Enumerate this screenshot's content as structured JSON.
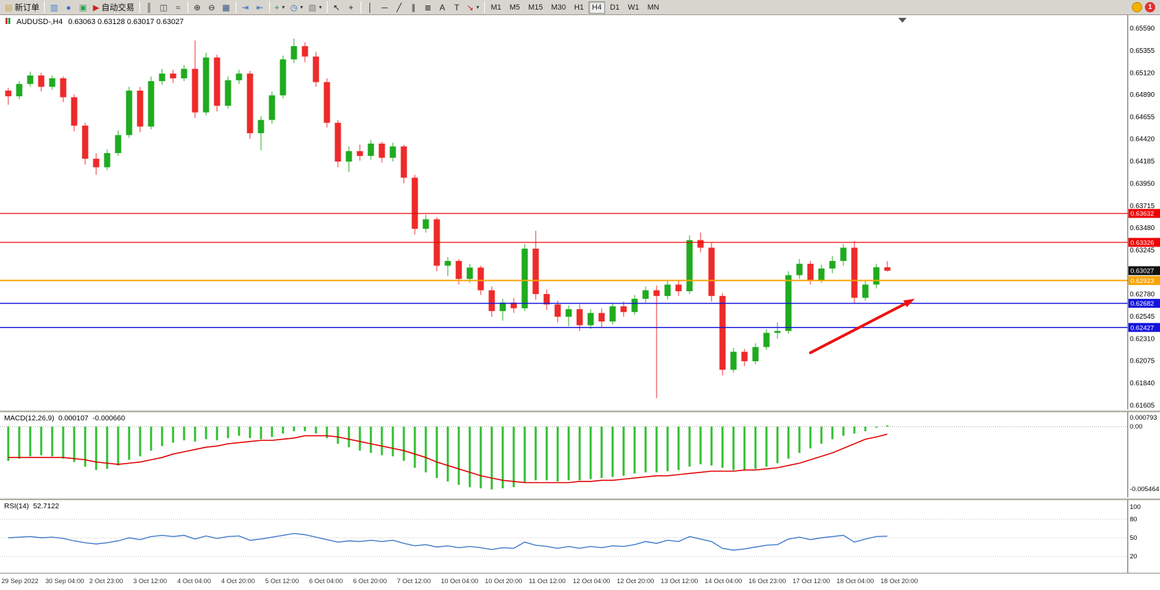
{
  "toolbar": {
    "buttons": [
      {
        "name": "new-order",
        "label": "新订单",
        "icon": "new-order-icon",
        "glyph": "▤",
        "color": "#caa43c"
      },
      {
        "name": "charts",
        "icon": "charts-icon",
        "glyph": "▥",
        "color": "#4a7ec9",
        "group_start": true
      },
      {
        "name": "profiles",
        "icon": "profiles-icon",
        "glyph": "●",
        "color": "#3a6fc0"
      },
      {
        "name": "market-watch",
        "icon": "market-watch-icon",
        "glyph": "▣",
        "color": "#2e9e4f"
      },
      {
        "name": "autotrading",
        "label": "自动交易",
        "icon": "autotrading-icon",
        "glyph": "▶",
        "color": "#cc2222"
      },
      {
        "name": "bars-mode",
        "icon": "bars-chart-icon",
        "glyph": "║",
        "color": "#444444",
        "group_start": true
      },
      {
        "name": "candles-mode",
        "icon": "candles-chart-icon",
        "glyph": "◫",
        "color": "#444444"
      },
      {
        "name": "line-mode",
        "icon": "line-chart-icon",
        "glyph": "≈",
        "color": "#444444"
      },
      {
        "name": "zoom-in",
        "icon": "zoom-in-icon",
        "glyph": "⊕",
        "color": "#333333",
        "group_start": true
      },
      {
        "name": "zoom-out",
        "icon": "zoom-out-icon",
        "glyph": "⊖",
        "color": "#333333"
      },
      {
        "name": "tile-windows",
        "icon": "tile-windows-icon",
        "glyph": "▦",
        "color": "#335588"
      },
      {
        "name": "auto-scroll",
        "icon": "auto-scroll-icon",
        "glyph": "⇥",
        "color": "#2f66c4",
        "group_start": true
      },
      {
        "name": "chart-shift",
        "icon": "chart-shift-icon",
        "glyph": "⇤",
        "color": "#2f66c4"
      },
      {
        "name": "new-chart",
        "icon": "new-chart-icon",
        "glyph": "+",
        "color": "#1d8f3a",
        "dropdown": true,
        "group_start": true
      },
      {
        "name": "periods",
        "icon": "clock-icon",
        "glyph": "◷",
        "color": "#3a6fc0",
        "dropdown": true
      },
      {
        "name": "templates",
        "icon": "template-chart-icon",
        "glyph": "▧",
        "color": "#777777",
        "dropdown": true
      },
      {
        "name": "cursor",
        "icon": "cursor-icon",
        "glyph": "↖",
        "color": "#222222",
        "group_start": true
      },
      {
        "name": "crosshair",
        "icon": "crosshair-icon",
        "glyph": "+",
        "color": "#222222"
      },
      {
        "name": "vertical-line",
        "icon": "vertical-line-icon",
        "glyph": "│",
        "color": "#222222",
        "group_start": true
      },
      {
        "name": "horizontal-line",
        "icon": "horizontal-line-icon",
        "glyph": "─",
        "color": "#222222"
      },
      {
        "name": "trendline",
        "icon": "trendline-icon",
        "glyph": "╱",
        "color": "#222222"
      },
      {
        "name": "channel",
        "icon": "channel-icon",
        "glyph": "∥",
        "color": "#222222"
      },
      {
        "name": "fibonacci",
        "icon": "fibonacci-icon",
        "glyph": "≣",
        "color": "#222222"
      },
      {
        "name": "text",
        "icon": "text-icon",
        "glyph": "A",
        "color": "#222222"
      },
      {
        "name": "text-label",
        "icon": "text-label-icon",
        "glyph": "T",
        "color": "#222222"
      },
      {
        "name": "arrows-tool",
        "icon": "arrows-tool-icon",
        "glyph": "↘",
        "color": "#bb2222",
        "dropdown": true
      }
    ],
    "timeframes": [
      "M1",
      "M5",
      "M15",
      "M30",
      "H1",
      "H4",
      "D1",
      "W1",
      "MN"
    ],
    "active_timeframe": "H4",
    "notification_count": "1"
  },
  "chart_data": [
    {
      "type": "candlestick",
      "symbol": "AUDUSD-",
      "period": "H4",
      "title": "AUDUSD-,H4",
      "ohlc_text": "0.63063 0.63128 0.63017 0.63027",
      "up_color": "#1fab1f",
      "down_color": "#ee2a2a",
      "price_axis": {
        "min": 0.61605,
        "max": 0.6559,
        "labels": [
          "0.65590",
          "0.65355",
          "0.65120",
          "0.64890",
          "0.64655",
          "0.64420",
          "0.64185",
          "0.63950",
          "0.63715",
          "0.63480",
          "0.63245",
          "0.62780",
          "0.62545",
          "0.62310",
          "0.62075",
          "0.61840",
          "0.61605"
        ]
      },
      "candles": [
        [
          0.6493,
          0.6496,
          0.6478,
          0.6487
        ],
        [
          0.6487,
          0.6503,
          0.6484,
          0.65
        ],
        [
          0.65,
          0.6513,
          0.6497,
          0.6509
        ],
        [
          0.6509,
          0.6512,
          0.6492,
          0.6497
        ],
        [
          0.6497,
          0.6509,
          0.6494,
          0.6506
        ],
        [
          0.6506,
          0.6508,
          0.6481,
          0.6486
        ],
        [
          0.6486,
          0.6489,
          0.645,
          0.6456
        ],
        [
          0.6456,
          0.6459,
          0.6415,
          0.6421
        ],
        [
          0.6421,
          0.6427,
          0.6404,
          0.6412
        ],
        [
          0.6412,
          0.6431,
          0.6409,
          0.6427
        ],
        [
          0.6427,
          0.6451,
          0.6424,
          0.6446
        ],
        [
          0.6446,
          0.6497,
          0.6443,
          0.6493
        ],
        [
          0.6493,
          0.6497,
          0.6449,
          0.6455
        ],
        [
          0.6455,
          0.6508,
          0.6452,
          0.6503
        ],
        [
          0.6503,
          0.6516,
          0.6499,
          0.6511
        ],
        [
          0.6511,
          0.6515,
          0.6501,
          0.6506
        ],
        [
          0.6506,
          0.652,
          0.6503,
          0.6516
        ],
        [
          0.6516,
          0.6546,
          0.6464,
          0.647
        ],
        [
          0.647,
          0.6533,
          0.6467,
          0.6528
        ],
        [
          0.6528,
          0.6531,
          0.6471,
          0.6477
        ],
        [
          0.6477,
          0.6508,
          0.6474,
          0.6504
        ],
        [
          0.6504,
          0.6515,
          0.65,
          0.6511
        ],
        [
          0.6511,
          0.6514,
          0.6442,
          0.6448
        ],
        [
          0.6448,
          0.6466,
          0.643,
          0.6462
        ],
        [
          0.6462,
          0.6492,
          0.6458,
          0.6488
        ],
        [
          0.6488,
          0.653,
          0.6485,
          0.6526
        ],
        [
          0.6526,
          0.6548,
          0.6522,
          0.654
        ],
        [
          0.654,
          0.6544,
          0.6523,
          0.6529
        ],
        [
          0.6529,
          0.6534,
          0.6497,
          0.6502
        ],
        [
          0.6502,
          0.6506,
          0.6454,
          0.6459
        ],
        [
          0.6459,
          0.6462,
          0.6412,
          0.6418
        ],
        [
          0.6418,
          0.6434,
          0.6407,
          0.6429
        ],
        [
          0.6429,
          0.6436,
          0.6419,
          0.6424
        ],
        [
          0.6424,
          0.6441,
          0.642,
          0.6437
        ],
        [
          0.6437,
          0.6439,
          0.6417,
          0.6422
        ],
        [
          0.6422,
          0.6438,
          0.6418,
          0.6434
        ],
        [
          0.6434,
          0.6436,
          0.6395,
          0.6401
        ],
        [
          0.6401,
          0.6404,
          0.6341,
          0.6347
        ],
        [
          0.6347,
          0.6362,
          0.6343,
          0.6357
        ],
        [
          0.6357,
          0.6359,
          0.6302,
          0.6308
        ],
        [
          0.6308,
          0.6317,
          0.6297,
          0.6313
        ],
        [
          0.6313,
          0.6315,
          0.6288,
          0.6294
        ],
        [
          0.6294,
          0.631,
          0.629,
          0.6306
        ],
        [
          0.6306,
          0.6308,
          0.6277,
          0.6282
        ],
        [
          0.6282,
          0.6286,
          0.6254,
          0.626
        ],
        [
          0.626,
          0.6273,
          0.625,
          0.6269
        ],
        [
          0.6269,
          0.6274,
          0.6258,
          0.6263
        ],
        [
          0.6263,
          0.6331,
          0.626,
          0.6326
        ],
        [
          0.6326,
          0.6345,
          0.6272,
          0.6278
        ],
        [
          0.6278,
          0.6283,
          0.6261,
          0.6267
        ],
        [
          0.6267,
          0.6271,
          0.6248,
          0.6254
        ],
        [
          0.6254,
          0.6266,
          0.6244,
          0.6262
        ],
        [
          0.6262,
          0.6267,
          0.6239,
          0.6245
        ],
        [
          0.6245,
          0.6262,
          0.6241,
          0.6258
        ],
        [
          0.6258,
          0.6263,
          0.6243,
          0.6249
        ],
        [
          0.6249,
          0.6269,
          0.6246,
          0.6265
        ],
        [
          0.6265,
          0.627,
          0.6254,
          0.6259
        ],
        [
          0.6259,
          0.6277,
          0.6256,
          0.6273
        ],
        [
          0.6273,
          0.6286,
          0.6269,
          0.6282
        ],
        [
          0.6282,
          0.6287,
          0.6168,
          0.6276
        ],
        [
          0.6276,
          0.6292,
          0.6272,
          0.6288
        ],
        [
          0.6288,
          0.6293,
          0.6276,
          0.6281
        ],
        [
          0.6281,
          0.634,
          0.6278,
          0.6335
        ],
        [
          0.6335,
          0.6343,
          0.6322,
          0.6327
        ],
        [
          0.6327,
          0.6332,
          0.627,
          0.6276
        ],
        [
          0.6276,
          0.6279,
          0.6192,
          0.6198
        ],
        [
          0.6198,
          0.6221,
          0.6195,
          0.6217
        ],
        [
          0.6217,
          0.622,
          0.6202,
          0.6207
        ],
        [
          0.6207,
          0.6226,
          0.6204,
          0.6222
        ],
        [
          0.6222,
          0.6241,
          0.6219,
          0.6237
        ],
        [
          0.6237,
          0.6248,
          0.6231,
          0.6239
        ],
        [
          0.6239,
          0.6302,
          0.6236,
          0.6298
        ],
        [
          0.6298,
          0.6315,
          0.6294,
          0.631
        ],
        [
          0.631,
          0.6313,
          0.6288,
          0.6293
        ],
        [
          0.6293,
          0.6309,
          0.629,
          0.6305
        ],
        [
          0.6305,
          0.6318,
          0.63,
          0.6313
        ],
        [
          0.6313,
          0.6331,
          0.6308,
          0.6327
        ],
        [
          0.6327,
          0.6334,
          0.6268,
          0.6274
        ],
        [
          0.6274,
          0.6292,
          0.6271,
          0.6288
        ],
        [
          0.6288,
          0.631,
          0.6284,
          0.63063
        ],
        [
          0.63063,
          0.63128,
          0.63017,
          0.63027
        ]
      ],
      "hlines": [
        {
          "price": 0.63632,
          "label": "0.63632",
          "color": "#ee0000",
          "width": 1.3
        },
        {
          "price": 0.63326,
          "label": "0.63326",
          "color": "#ee0000",
          "width": 1.3
        },
        {
          "price": 0.62923,
          "label": "0.62923",
          "color": "#f7a300",
          "width": 2
        },
        {
          "price": 0.62682,
          "label": "0.62682",
          "color": "#1414dd",
          "width": 1.6
        },
        {
          "price": 0.62427,
          "label": "0.62427",
          "color": "#1414dd",
          "width": 1.6
        }
      ],
      "current_price": {
        "value": 0.63027,
        "label": "0.63027",
        "color": "#111111"
      },
      "arrow": {
        "from_index": 73,
        "from_price": 0.6216,
        "to_index": 82.5,
        "to_price": 0.6273,
        "color": "#ee1111"
      },
      "time_labels": [
        "29 Sep 2022",
        "30 Sep 04:00",
        "2 Oct 23:00",
        "3 Oct 12:00",
        "4 Oct 04:00",
        "4 Oct 20:00",
        "5 Oct 12:00",
        "6 Oct 04:00",
        "6 Oct 20:00",
        "7 Oct 12:00",
        "10 Oct 04:00",
        "10 Oct 20:00",
        "11 Oct 12:00",
        "12 Oct 04:00",
        "12 Oct 20:00",
        "13 Oct 12:00",
        "14 Oct 04:00",
        "16 Oct 23:00",
        "17 Oct 12:00",
        "18 Oct 04:00",
        "18 Oct 20:00"
      ]
    },
    {
      "type": "bar",
      "name": "MACD(12,26,9)",
      "value_main": "0.000107",
      "value_signal": "-0.000660",
      "max": 0.000793,
      "min": -0.005464,
      "axis_labels": [
        "0.000793",
        "0.00",
        "-0.005464"
      ],
      "histogram_color": "#2fbf2f",
      "signal_color": "#e00000",
      "histogram": [
        -0.003,
        -0.0028,
        -0.0026,
        -0.0025,
        -0.0026,
        -0.0028,
        -0.0031,
        -0.0035,
        -0.0038,
        -0.0037,
        -0.0034,
        -0.0029,
        -0.0026,
        -0.0021,
        -0.0017,
        -0.0014,
        -0.0012,
        -0.0013,
        -0.0011,
        -0.0012,
        -0.001,
        -0.0008,
        -0.001,
        -0.0011,
        -0.0009,
        -0.0006,
        -0.0004,
        -0.0004,
        -0.0006,
        -0.001,
        -0.0015,
        -0.0018,
        -0.0021,
        -0.0023,
        -0.0025,
        -0.0026,
        -0.003,
        -0.0036,
        -0.004,
        -0.0045,
        -0.0048,
        -0.0051,
        -0.0053,
        -0.0054,
        -0.0055,
        -0.0054,
        -0.0053,
        -0.0049,
        -0.0047,
        -0.0047,
        -0.0048,
        -0.0047,
        -0.0047,
        -0.0046,
        -0.0045,
        -0.0044,
        -0.0043,
        -0.0041,
        -0.004,
        -0.004,
        -0.0039,
        -0.0038,
        -0.0035,
        -0.0033,
        -0.0034,
        -0.0036,
        -0.0038,
        -0.0038,
        -0.0037,
        -0.0035,
        -0.0032,
        -0.0028,
        -0.0023,
        -0.0019,
        -0.0015,
        -0.0011,
        -0.0008,
        -0.0006,
        -0.0004,
        -0.0001,
        0.000107
      ],
      "signal": [
        -0.0027,
        -0.0027,
        -0.0027,
        -0.0027,
        -0.0027,
        -0.0027,
        -0.0028,
        -0.0029,
        -0.0031,
        -0.0032,
        -0.0033,
        -0.0032,
        -0.0031,
        -0.0029,
        -0.0027,
        -0.0024,
        -0.0022,
        -0.002,
        -0.0018,
        -0.0017,
        -0.0015,
        -0.0014,
        -0.0013,
        -0.0012,
        -0.0012,
        -0.0011,
        -0.001,
        -0.0008,
        -0.0008,
        -0.0008,
        -0.0009,
        -0.0011,
        -0.0013,
        -0.0015,
        -0.0017,
        -0.0019,
        -0.0021,
        -0.0024,
        -0.0027,
        -0.0031,
        -0.0034,
        -0.0037,
        -0.004,
        -0.0043,
        -0.0045,
        -0.0047,
        -0.0048,
        -0.0049,
        -0.0049,
        -0.0049,
        -0.0049,
        -0.0049,
        -0.0048,
        -0.0048,
        -0.0047,
        -0.0047,
        -0.0046,
        -0.0045,
        -0.0044,
        -0.0043,
        -0.0043,
        -0.0042,
        -0.0041,
        -0.004,
        -0.0039,
        -0.0039,
        -0.0039,
        -0.0038,
        -0.0038,
        -0.0037,
        -0.0036,
        -0.0034,
        -0.0032,
        -0.0029,
        -0.0026,
        -0.0023,
        -0.0019,
        -0.0015,
        -0.0011,
        -0.0009,
        -0.00066
      ]
    },
    {
      "type": "line",
      "name": "RSI(14)",
      "value": "52.7122",
      "max": 100,
      "min": 0,
      "levels": [
        80,
        50,
        20
      ],
      "axis_labels": [
        "100",
        "80",
        "50",
        "20"
      ],
      "color": "#3b78c9",
      "values": [
        50,
        51,
        52,
        50,
        51,
        49,
        45,
        42,
        40,
        42,
        45,
        50,
        47,
        52,
        54,
        52,
        54,
        48,
        53,
        49,
        52,
        53,
        46,
        48,
        51,
        54,
        57,
        55,
        51,
        47,
        43,
        45,
        44,
        46,
        44,
        46,
        41,
        37,
        39,
        35,
        37,
        34,
        36,
        34,
        31,
        34,
        33,
        43,
        38,
        36,
        33,
        36,
        33,
        36,
        34,
        37,
        36,
        39,
        44,
        41,
        46,
        44,
        52,
        48,
        44,
        33,
        30,
        32,
        35,
        38,
        39,
        48,
        51,
        47,
        50,
        52,
        54,
        43,
        48,
        52,
        52.71
      ]
    }
  ]
}
